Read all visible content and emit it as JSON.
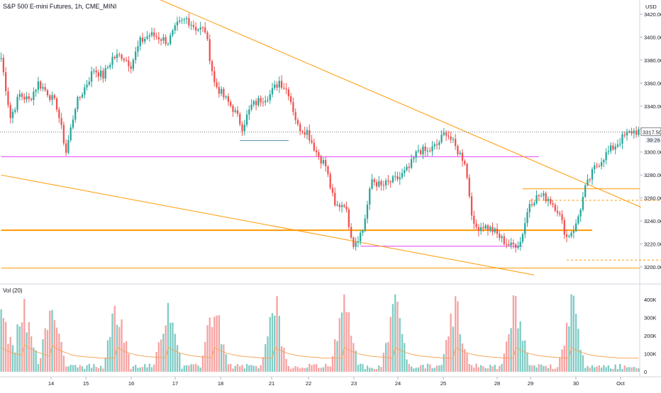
{
  "header": {
    "title": "S&P 500 E-mini Futures, 1h, CME_MINI",
    "currency": "USD"
  },
  "volume_panel": {
    "label": "Vol (20)",
    "ticks": [
      "400K",
      "300K",
      "200K",
      "100K",
      "0"
    ]
  },
  "price_axis": {
    "ticks": [
      "3420.00",
      "3400.00",
      "3380.00",
      "3360.00",
      "3340.00",
      "3320.00",
      "3300.00",
      "3280.00",
      "3260.00",
      "3240.00",
      "3220.00",
      "3200.00"
    ],
    "last_price": "3317.50",
    "countdown": "39:26"
  },
  "time_axis": {
    "ticks": [
      "14",
      "15",
      "16",
      "17",
      "18",
      "21",
      "22",
      "23",
      "24",
      "25",
      "28",
      "29",
      "30",
      "Oct"
    ]
  },
  "colors": {
    "up": "#26a69a",
    "down": "#ef5350",
    "up_vol": "#7fcbc4",
    "down_vol": "#f5a3a1",
    "trendline": "#ff9800",
    "support": "#e040fb",
    "ma": "#f7a55d",
    "last_price_bg": "#ffffff"
  },
  "chart_data": {
    "type": "candlestick",
    "title": "S&P 500 E-mini Futures, 1h, CME_MINI",
    "ylabel": "USD",
    "ylim": [
      3195,
      3430
    ],
    "close_path": [
      [
        0,
        3382
      ],
      [
        4,
        3330
      ],
      [
        8,
        3350
      ],
      [
        12,
        3345
      ],
      [
        16,
        3360
      ],
      [
        20,
        3352
      ],
      [
        24,
        3340
      ],
      [
        28,
        3300
      ],
      [
        32,
        3340
      ],
      [
        36,
        3356
      ],
      [
        40,
        3372
      ],
      [
        44,
        3366
      ],
      [
        48,
        3382
      ],
      [
        52,
        3384
      ],
      [
        56,
        3376
      ],
      [
        60,
        3396
      ],
      [
        64,
        3402
      ],
      [
        68,
        3400
      ],
      [
        72,
        3396
      ],
      [
        76,
        3410
      ],
      [
        80,
        3416
      ],
      [
        84,
        3408
      ],
      [
        88,
        3406
      ],
      [
        92,
        3360
      ],
      [
        96,
        3348
      ],
      [
        100,
        3338
      ],
      [
        104,
        3322
      ],
      [
        108,
        3340
      ],
      [
        112,
        3346
      ],
      [
        116,
        3350
      ],
      [
        120,
        3362
      ],
      [
        124,
        3352
      ],
      [
        128,
        3322
      ],
      [
        132,
        3318
      ],
      [
        136,
        3300
      ],
      [
        140,
        3288
      ],
      [
        144,
        3252
      ],
      [
        148,
        3256
      ],
      [
        152,
        3220
      ],
      [
        156,
        3232
      ],
      [
        160,
        3276
      ],
      [
        164,
        3270
      ],
      [
        168,
        3274
      ],
      [
        172,
        3278
      ],
      [
        176,
        3286
      ],
      [
        180,
        3302
      ],
      [
        184,
        3300
      ],
      [
        188,
        3306
      ],
      [
        192,
        3318
      ],
      [
        196,
        3304
      ],
      [
        200,
        3292
      ],
      [
        204,
        3234
      ],
      [
        208,
        3236
      ],
      [
        212,
        3232
      ],
      [
        216,
        3224
      ],
      [
        220,
        3218
      ],
      [
        224,
        3222
      ],
      [
        228,
        3256
      ],
      [
        232,
        3262
      ],
      [
        236,
        3260
      ],
      [
        240,
        3250
      ],
      [
        244,
        3226
      ],
      [
        248,
        3236
      ],
      [
        252,
        3268
      ],
      [
        256,
        3286
      ],
      [
        260,
        3296
      ],
      [
        264,
        3304
      ],
      [
        268,
        3312
      ],
      [
        272,
        3318
      ]
    ],
    "volume_max": 450000,
    "volume_ticks_values": [
      400000,
      300000,
      200000,
      100000,
      0
    ],
    "volume_ma_level": 75000,
    "horizontal_lines": [
      {
        "name": "support-3296",
        "price": 3296,
        "color": "magenta",
        "from_bar": 0,
        "to_bar": 232
      },
      {
        "name": "support-3232",
        "price": 3232,
        "color": "orange",
        "from_bar": 0,
        "to_bar": 255
      },
      {
        "name": "support-3199",
        "price": 3199,
        "color": "orange",
        "from_bar": 0,
        "to_bar": 315
      },
      {
        "name": "resistance-3268",
        "price": 3268,
        "color": "orange",
        "from_bar": 225,
        "to_bar": 320
      },
      {
        "name": "support-3218",
        "price": 3218,
        "color": "magenta",
        "from_bar": 155,
        "to_bar": 225
      },
      {
        "name": "level-3310",
        "price": 3310,
        "color": "slate",
        "from_bar": 103,
        "to_bar": 124
      }
    ],
    "trendlines": [
      {
        "name": "upper-descending",
        "from": [
          60,
          3440
        ],
        "to": [
          276,
          3252
        ]
      },
      {
        "name": "lower-descending",
        "from": [
          0,
          3280
        ],
        "to": [
          230,
          3193
        ]
      }
    ]
  }
}
